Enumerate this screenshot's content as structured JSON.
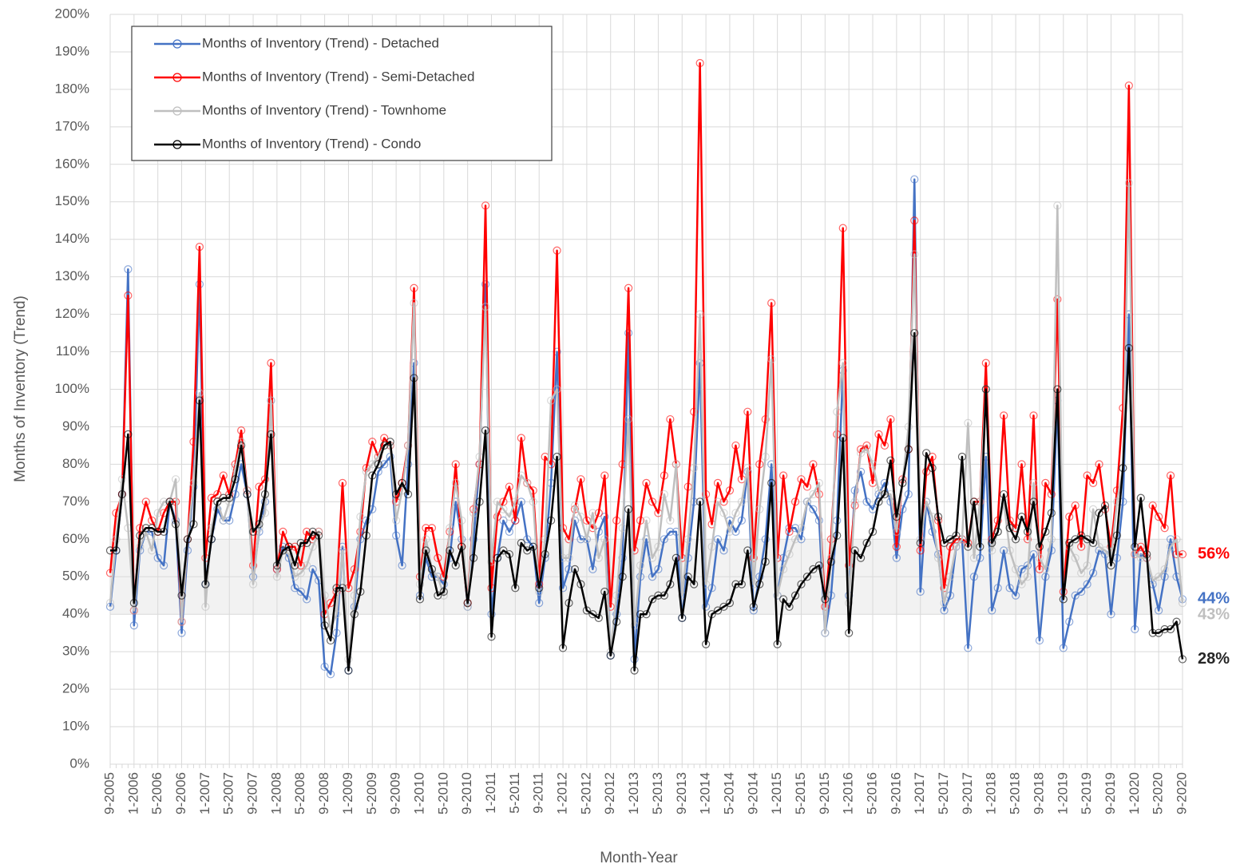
{
  "chart_data": {
    "type": "line",
    "y_label": "Months of Inventory (Trend)",
    "x_label": "Month-Year",
    "categories": [
      "9-2005",
      null,
      null,
      null,
      "1-2006",
      null,
      null,
      null,
      "5-2006",
      null,
      null,
      null,
      "9-2006",
      null,
      null,
      null,
      "1-2007",
      null,
      null,
      null,
      "5-2007",
      null,
      null,
      null,
      "9-2007",
      null,
      null,
      null,
      "1-2008",
      null,
      null,
      null,
      "5-2008",
      null,
      null,
      null,
      "9-2008",
      null,
      null,
      null,
      "1-2009",
      null,
      null,
      null,
      "5-2009",
      null,
      null,
      null,
      "9-2009",
      null,
      null,
      null,
      "1-2010",
      null,
      null,
      null,
      "5-2010",
      null,
      null,
      null,
      "9-2010",
      null,
      null,
      null,
      "1-2011",
      null,
      null,
      null,
      "5-2011",
      null,
      null,
      null,
      "9-2011",
      null,
      null,
      null,
      "1-2012",
      null,
      null,
      null,
      "5-2012",
      null,
      null,
      null,
      "9-2012",
      null,
      null,
      null,
      "1-2013",
      null,
      null,
      null,
      "5-2013",
      null,
      null,
      null,
      "9-2013",
      null,
      null,
      null,
      "1-2014",
      null,
      null,
      null,
      "5-2014",
      null,
      null,
      null,
      "9-2014",
      null,
      null,
      null,
      "1-2015",
      null,
      null,
      null,
      "5-2015",
      null,
      null,
      null,
      "9-2015",
      null,
      null,
      null,
      "1-2016",
      null,
      null,
      null,
      "5-2016",
      null,
      null,
      null,
      "9-2016",
      null,
      null,
      null,
      "1-2017",
      null,
      null,
      null,
      "5-2017",
      null,
      null,
      null,
      "9-2017",
      null,
      null,
      null,
      "1-2018",
      null,
      null,
      null,
      "5-2018",
      null,
      null,
      null,
      "9-2018",
      null,
      null,
      null,
      "1-2019",
      null,
      null,
      null,
      "5-2019",
      null,
      null,
      null,
      "9-2019",
      null,
      null,
      null,
      "1-2020",
      null,
      null,
      null,
      "5-2020",
      null,
      null,
      null,
      "9-2020"
    ],
    "series": [
      {
        "name": "Months of Inventory (Trend) - Detached",
        "color": "#4472c4",
        "end_label": "44%",
        "values": [
          42,
          57,
          72,
          132,
          37,
          57,
          62,
          62,
          55,
          53,
          70,
          65,
          35,
          57,
          74,
          128,
          48,
          60,
          68,
          65,
          65,
          72,
          80,
          72,
          50,
          62,
          70,
          97,
          52,
          58,
          55,
          47,
          46,
          44,
          52,
          49,
          26,
          24,
          35,
          58,
          25,
          42,
          60,
          65,
          68,
          78,
          80,
          82,
          61,
          53,
          80,
          107,
          45,
          55,
          50,
          50,
          48,
          55,
          70,
          60,
          42,
          60,
          80,
          128,
          40,
          55,
          65,
          62,
          65,
          70,
          60,
          58,
          43,
          55,
          75,
          110,
          47,
          52,
          65,
          60,
          60,
          52,
          62,
          66,
          29,
          40,
          55,
          115,
          28,
          50,
          60,
          50,
          52,
          60,
          62,
          62,
          39,
          55,
          70,
          107,
          42,
          47,
          60,
          57,
          65,
          62,
          65,
          78,
          41,
          50,
          60,
          80,
          45,
          55,
          63,
          63,
          60,
          70,
          68,
          65,
          35,
          45,
          65,
          105,
          45,
          73,
          78,
          70,
          68,
          72,
          75,
          70,
          55,
          68,
          72,
          156,
          46,
          70,
          62,
          56,
          41,
          45,
          58,
          60,
          31,
          50,
          55,
          82,
          41,
          47,
          57,
          47,
          45,
          52,
          53,
          56,
          33,
          50,
          57,
          97,
          31,
          38,
          45,
          46,
          48,
          51,
          57,
          56,
          40,
          55,
          70,
          120,
          36,
          56,
          55,
          48,
          41,
          50,
          60,
          50,
          44
        ]
      },
      {
        "name": "Months of Inventory (Trend) - Semi-Detached",
        "color": "#ff0000",
        "end_label": "56%",
        "values": [
          51,
          67,
          72,
          125,
          41,
          63,
          70,
          65,
          62,
          67,
          70,
          70,
          38,
          60,
          86,
          138,
          55,
          71,
          72,
          77,
          72,
          80,
          89,
          73,
          53,
          74,
          76,
          107,
          52,
          62,
          58,
          58,
          53,
          62,
          60,
          62,
          40,
          43,
          46,
          75,
          47,
          52,
          62,
          79,
          86,
          82,
          87,
          85,
          70,
          75,
          85,
          127,
          50,
          63,
          63,
          55,
          50,
          62,
          80,
          58,
          43,
          68,
          80,
          149,
          47,
          66,
          70,
          74,
          65,
          87,
          75,
          73,
          48,
          82,
          80,
          137,
          63,
          60,
          68,
          76,
          65,
          63,
          67,
          77,
          42,
          65,
          80,
          127,
          57,
          65,
          75,
          70,
          67,
          77,
          92,
          80,
          55,
          74,
          94,
          187,
          72,
          64,
          75,
          70,
          73,
          85,
          76,
          94,
          55,
          80,
          92,
          123,
          55,
          77,
          62,
          70,
          76,
          74,
          80,
          72,
          42,
          60,
          88,
          143,
          53,
          69,
          84,
          85,
          75,
          88,
          85,
          92,
          58,
          76,
          84,
          145,
          57,
          78,
          82,
          65,
          47,
          58,
          60,
          60,
          59,
          70,
          70,
          107,
          60,
          65,
          93,
          65,
          63,
          80,
          60,
          93,
          52,
          75,
          72,
          124,
          46,
          66,
          69,
          58,
          77,
          75,
          80,
          68,
          58,
          73,
          95,
          181,
          56,
          58,
          55,
          69,
          66,
          63,
          77,
          56,
          56
        ]
      },
      {
        "name": "Months of Inventory (Trend) - Townhome",
        "color": "#bfbfbf",
        "end_label": "43%",
        "values": [
          43,
          60,
          76,
          63,
          41,
          58,
          62,
          57,
          67,
          70,
          70,
          76,
          38,
          60,
          75,
          99,
          42,
          63,
          70,
          65,
          70,
          79,
          86,
          73,
          48,
          63,
          67,
          97,
          50,
          57,
          56,
          50,
          51,
          53,
          58,
          62,
          45,
          36,
          40,
          57,
          28,
          45,
          66,
          78,
          80,
          82,
          85,
          85,
          65,
          73,
          85,
          123,
          48,
          60,
          52,
          50,
          45,
          63,
          75,
          65,
          42,
          67,
          82,
          122,
          54,
          70,
          68,
          66,
          70,
          77,
          75,
          70,
          46,
          60,
          97,
          100,
          55,
          55,
          69,
          66,
          60,
          67,
          55,
          60,
          30,
          45,
          63,
          92,
          37,
          53,
          65,
          55,
          58,
          72,
          65,
          80,
          45,
          60,
          79,
          120,
          48,
          58,
          70,
          67,
          62,
          67,
          70,
          79,
          48,
          68,
          82,
          108,
          45,
          52,
          56,
          60,
          63,
          70,
          72,
          75,
          35,
          55,
          94,
          107,
          43,
          70,
          83,
          84,
          80,
          73,
          72,
          72,
          62,
          75,
          90,
          136,
          60,
          70,
          66,
          55,
          43,
          50,
          58,
          60,
          91,
          55,
          70,
          100,
          57,
          62,
          70,
          57,
          52,
          48,
          50,
          75,
          55,
          52,
          60,
          149,
          44,
          58,
          55,
          51,
          53,
          68,
          58,
          57,
          55,
          70,
          79,
          155,
          56,
          55,
          55,
          49,
          50,
          52,
          58,
          60,
          43
        ]
      },
      {
        "name": "Months of Inventory (Trend) - Condo",
        "color": "#000000",
        "end_label": "28%",
        "values": [
          57,
          57,
          72,
          88,
          43,
          61,
          63,
          63,
          62,
          62,
          70,
          64,
          45,
          60,
          64,
          97,
          48,
          60,
          70,
          71,
          71,
          76,
          85,
          72,
          62,
          64,
          72,
          88,
          53,
          57,
          58,
          53,
          59,
          59,
          62,
          61,
          37,
          33,
          47,
          47,
          25,
          40,
          46,
          61,
          77,
          80,
          85,
          86,
          72,
          75,
          72,
          103,
          44,
          57,
          52,
          45,
          46,
          57,
          53,
          58,
          43,
          55,
          70,
          89,
          34,
          55,
          57,
          56,
          47,
          59,
          57,
          58,
          47,
          56,
          65,
          82,
          31,
          43,
          52,
          48,
          41,
          40,
          39,
          46,
          29,
          38,
          50,
          68,
          25,
          40,
          40,
          44,
          45,
          45,
          48,
          55,
          39,
          50,
          48,
          70,
          32,
          40,
          41,
          42,
          43,
          48,
          48,
          57,
          42,
          48,
          54,
          75,
          32,
          44,
          42,
          45,
          48,
          50,
          52,
          53,
          44,
          54,
          61,
          87,
          35,
          57,
          55,
          59,
          62,
          70,
          72,
          81,
          66,
          75,
          84,
          115,
          59,
          83,
          79,
          66,
          59,
          60,
          61,
          82,
          58,
          70,
          58,
          100,
          59,
          62,
          72,
          63,
          60,
          66,
          62,
          70,
          58,
          62,
          67,
          100,
          44,
          59,
          60,
          61,
          60,
          59,
          67,
          69,
          53,
          61,
          79,
          111,
          58,
          71,
          56,
          35,
          35,
          36,
          36,
          38,
          28
        ]
      }
    ],
    "ylim": [
      0,
      200
    ],
    "yticks": [
      {
        "value": 0,
        "label": "0%"
      },
      {
        "value": 10,
        "label": "10%"
      },
      {
        "value": 20,
        "label": "20%"
      },
      {
        "value": 30,
        "label": "30%"
      },
      {
        "value": 40,
        "label": "40%"
      },
      {
        "value": 50,
        "label": "50%"
      },
      {
        "value": 60,
        "label": "60%"
      },
      {
        "value": 70,
        "label": "70%"
      },
      {
        "value": 80,
        "label": "80%"
      },
      {
        "value": 90,
        "label": "90%"
      },
      {
        "value": 100,
        "label": "100%"
      },
      {
        "value": 110,
        "label": "110%"
      },
      {
        "value": 120,
        "label": "120%"
      },
      {
        "value": 130,
        "label": "130%"
      },
      {
        "value": 140,
        "label": "140%"
      },
      {
        "value": 150,
        "label": "150%"
      },
      {
        "value": 160,
        "label": "160%"
      },
      {
        "value": 170,
        "label": "170%"
      },
      {
        "value": 180,
        "label": "180%"
      },
      {
        "value": 190,
        "label": "190%"
      },
      {
        "value": 200,
        "label": "200%"
      }
    ],
    "shaded_band": [
      40,
      60
    ],
    "grid": true,
    "legend": "top-left"
  }
}
